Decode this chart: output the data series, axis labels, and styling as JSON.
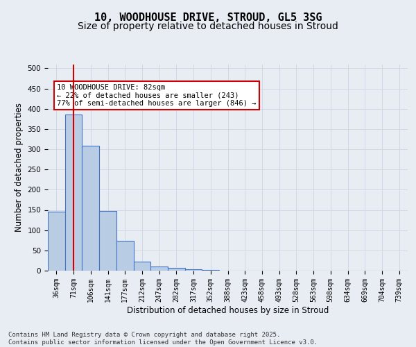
{
  "title_line1": "10, WOODHOUSE DRIVE, STROUD, GL5 3SG",
  "title_line2": "Size of property relative to detached houses in Stroud",
  "xlabel": "Distribution of detached houses by size in Stroud",
  "ylabel": "Number of detached properties",
  "bar_values": [
    145,
    385,
    308,
    148,
    73,
    22,
    10,
    7,
    4,
    2,
    0,
    0,
    0,
    0,
    0,
    0,
    0,
    0,
    0,
    0,
    0
  ],
  "bin_labels": [
    "36sqm",
    "71sqm",
    "106sqm",
    "141sqm",
    "177sqm",
    "212sqm",
    "247sqm",
    "282sqm",
    "317sqm",
    "352sqm",
    "388sqm",
    "423sqm",
    "458sqm",
    "493sqm",
    "528sqm",
    "563sqm",
    "598sqm",
    "634sqm",
    "669sqm",
    "704sqm",
    "739sqm"
  ],
  "bar_color": "#b8cce4",
  "bar_edge_color": "#4472c4",
  "grid_color": "#d0d8e8",
  "background_color": "#e8edf4",
  "vline_x": 1,
  "vline_color": "#cc0000",
  "annotation_text": "10 WOODHOUSE DRIVE: 82sqm\n← 22% of detached houses are smaller (243)\n77% of semi-detached houses are larger (846) →",
  "annotation_box_color": "#ffffff",
  "annotation_box_edge": "#cc0000",
  "footer_text": "Contains HM Land Registry data © Crown copyright and database right 2025.\nContains public sector information licensed under the Open Government Licence v3.0.",
  "ylim": [
    0,
    510
  ],
  "yticks": [
    0,
    50,
    100,
    150,
    200,
    250,
    300,
    350,
    400,
    450,
    500
  ],
  "title_fontsize": 11,
  "subtitle_fontsize": 10,
  "axis_label_fontsize": 8.5,
  "tick_fontsize": 7.5,
  "footer_fontsize": 6.5
}
